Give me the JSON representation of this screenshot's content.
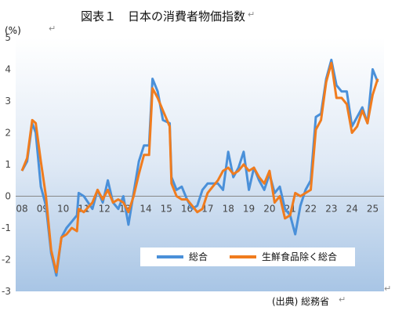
{
  "title": "図表１　日本の消費者物価指数",
  "unit": "(%)",
  "source": "(出典) 総務省",
  "chart_data": {
    "type": "line",
    "x": [
      "2008-01",
      "2008-04",
      "2008-07",
      "2008-09",
      "2008-12",
      "2009-03",
      "2009-06",
      "2009-09",
      "2009-12",
      "2010-03",
      "2010-06",
      "2010-09",
      "2010-10",
      "2011-01",
      "2011-06",
      "2011-09",
      "2011-12",
      "2012-03",
      "2012-06",
      "2012-09",
      "2012-12",
      "2013-03",
      "2013-06",
      "2013-09",
      "2013-12",
      "2014-03",
      "2014-05",
      "2014-08",
      "2014-11",
      "2015-03",
      "2015-04",
      "2015-07",
      "2015-10",
      "2016-01",
      "2016-04",
      "2016-07",
      "2016-10",
      "2017-01",
      "2017-04",
      "2017-07",
      "2017-10",
      "2018-01",
      "2018-04",
      "2018-07",
      "2018-10",
      "2019-01",
      "2019-04",
      "2019-07",
      "2019-10",
      "2020-01",
      "2020-04",
      "2020-07",
      "2020-10",
      "2021-01",
      "2021-04",
      "2021-07",
      "2021-10",
      "2022-01",
      "2022-04",
      "2022-07",
      "2022-10",
      "2023-01",
      "2023-04",
      "2023-07",
      "2023-10",
      "2024-01",
      "2024-04",
      "2024-07",
      "2024-10",
      "2025-01",
      "2025-04"
    ],
    "series": [
      {
        "name": "総合",
        "color": "#4a90d9",
        "values": [
          0.8,
          1.1,
          2.3,
          2.0,
          0.3,
          -0.3,
          -1.8,
          -2.5,
          -1.3,
          -1.0,
          -0.8,
          -0.6,
          0.1,
          0.0,
          -0.4,
          0.2,
          -0.2,
          0.5,
          -0.2,
          -0.4,
          0.0,
          -0.9,
          0.1,
          1.1,
          1.6,
          1.6,
          3.7,
          3.3,
          2.4,
          2.3,
          0.6,
          0.2,
          0.3,
          -0.1,
          -0.4,
          -0.3,
          0.2,
          0.4,
          0.4,
          0.4,
          0.2,
          1.4,
          0.6,
          0.9,
          1.4,
          0.2,
          0.9,
          0.5,
          0.2,
          0.7,
          0.1,
          0.3,
          -0.4,
          -0.6,
          -1.2,
          -0.3,
          0.2,
          0.5,
          2.5,
          2.6,
          3.7,
          4.3,
          3.5,
          3.3,
          3.3,
          2.2,
          2.5,
          2.8,
          2.3,
          4.0,
          3.6
        ]
      },
      {
        "name": "生鮮食品除く総合",
        "color": "#f07c1e",
        "values": [
          0.8,
          1.2,
          2.4,
          2.3,
          1.1,
          0.0,
          -1.7,
          -2.4,
          -1.3,
          -1.2,
          -1.0,
          -1.1,
          -0.4,
          -0.5,
          -0.2,
          0.2,
          -0.1,
          0.2,
          -0.2,
          -0.1,
          -0.2,
          -0.5,
          0.0,
          0.7,
          1.3,
          1.3,
          3.4,
          3.1,
          2.7,
          2.2,
          0.4,
          0.0,
          -0.1,
          -0.1,
          -0.3,
          -0.5,
          -0.4,
          0.1,
          0.3,
          0.5,
          0.8,
          0.9,
          0.7,
          0.8,
          1.0,
          0.8,
          0.9,
          0.6,
          0.4,
          0.8,
          -0.2,
          0.0,
          -0.7,
          -0.6,
          0.1,
          0.0,
          0.1,
          0.2,
          2.1,
          2.4,
          3.6,
          4.2,
          3.1,
          3.1,
          2.9,
          2.0,
          2.2,
          2.7,
          2.3,
          3.2,
          3.7
        ]
      }
    ],
    "x_tick_labels": [
      "08",
      "09",
      "10",
      "11",
      "12",
      "13",
      "14",
      "15",
      "16",
      "17",
      "18",
      "19",
      "20",
      "21",
      "22",
      "23",
      "24",
      "25"
    ],
    "ylim": [
      -3,
      5
    ],
    "y_ticks": [
      5,
      4,
      3,
      2,
      1,
      0,
      -1,
      -2,
      -3
    ],
    "legend_position": "lower-right",
    "grid": false,
    "background": "gradient"
  }
}
